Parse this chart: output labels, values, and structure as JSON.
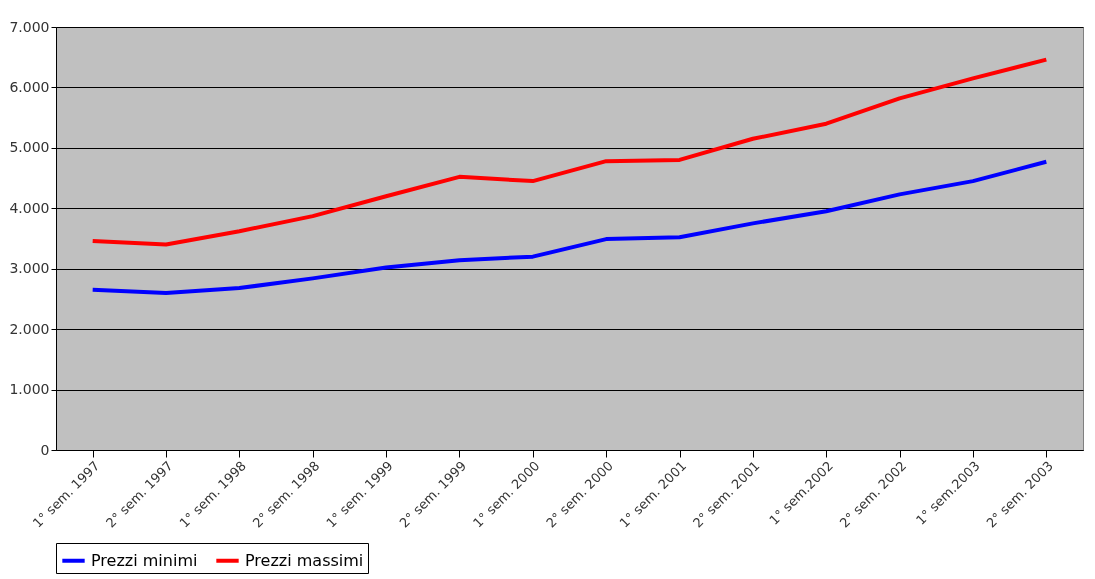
{
  "chart_data": {
    "type": "line",
    "categories": [
      "1° sem. 1997",
      "2° sem. 1997",
      "1° sem. 1998",
      "2° sem. 1998",
      "1° sem. 1999",
      "2° sem. 1999",
      "1° sem. 2000",
      "2° sem. 2000",
      "1° sem. 2001",
      "2° sem. 2001",
      "1° sem.2002",
      "2° sem. 2002",
      "1° sem.2003",
      "2° sem. 2003"
    ],
    "series": [
      {
        "name": "Prezzi minimi",
        "color": "#0000ff",
        "values": [
          2650,
          2600,
          2680,
          2840,
          3020,
          3140,
          3200,
          3490,
          3520,
          3750,
          3950,
          4230,
          4450,
          4770
        ]
      },
      {
        "name": "Prezzi massimi",
        "color": "#ff0000",
        "values": [
          3460,
          3400,
          3620,
          3870,
          4200,
          4520,
          4450,
          4780,
          4800,
          5150,
          5400,
          5820,
          6150,
          6460
        ]
      }
    ],
    "ylim": [
      0,
      7000
    ],
    "yticks": [
      0,
      {
        "value": 1000,
        "label": "1.000"
      },
      {
        "value": 2000,
        "label": "2.000"
      },
      {
        "value": 3000,
        "label": "3.000"
      },
      {
        "value": 4000,
        "label": "4.000"
      },
      {
        "value": 5000,
        "label": "5.000"
      },
      {
        "value": 6000,
        "label": "6.000"
      },
      {
        "value": 7000,
        "label": "7.000"
      }
    ],
    "grid": "y",
    "legend": "bottom",
    "marker": "none",
    "line_style": "solid"
  }
}
